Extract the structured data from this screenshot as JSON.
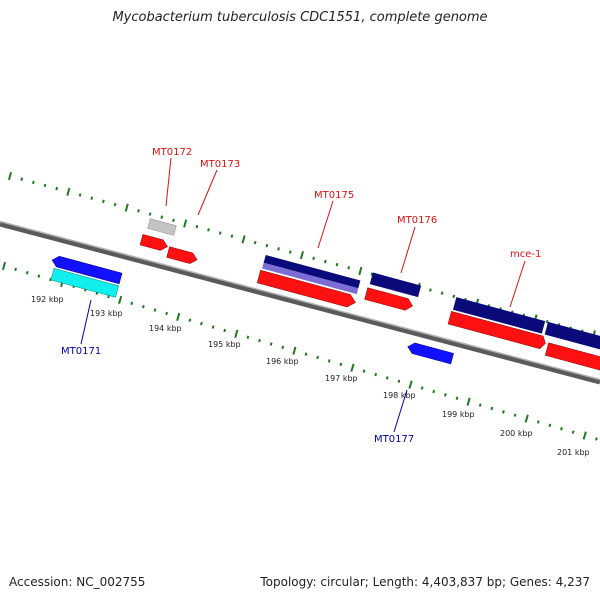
{
  "title": "Mycobacterium tuberculosis CDC1551, complete genome",
  "footer": {
    "accession": "Accession: NC_002755",
    "summary": "Topology: circular; Length: 4,403,837 bp; Genes: 4,237"
  },
  "colors": {
    "backbone": "#8a8a8a",
    "tick": "#1f7a1f",
    "forward_label": "#dd1111",
    "reverse_label": "#0000aa",
    "cds_forward": "#ff1111",
    "cds_reverse": "#1111ff",
    "gene_navy": "#0a0a7a",
    "gene_gray": "#c4c4c4",
    "gene_cyan": "#11eeee",
    "gene_lavender": "#7b6cd6"
  },
  "scale": {
    "labels": [
      "192 kbp",
      "193 kbp",
      "194 kbp",
      "195 kbp",
      "196 kbp",
      "197 kbp",
      "198 kbp",
      "199 kbp",
      "200 kbp",
      "201 kbp"
    ]
  },
  "labels": {
    "mt0171": "MT0171",
    "mt0172": "MT0172",
    "mt0173": "MT0173",
    "mt0175": "MT0175",
    "mt0176": "MT0176",
    "mce1": "mce-1",
    "mt0177": "MT0177"
  }
}
